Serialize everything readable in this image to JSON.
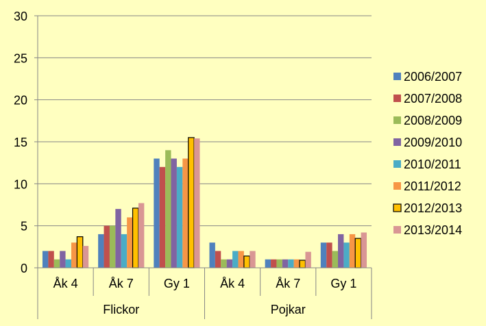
{
  "chart_data": {
    "type": "bar",
    "ylim": [
      0,
      30
    ],
    "yticks": [
      0,
      5,
      10,
      15,
      20,
      25,
      30
    ],
    "grid": true,
    "legend_position": "right",
    "groups": [
      {
        "label": "Flickor",
        "categories": [
          "Åk 4",
          "Åk 7",
          "Gy 1"
        ]
      },
      {
        "label": "Pojkar",
        "categories": [
          "Åk 4",
          "Åk 7",
          "Gy 1"
        ]
      }
    ],
    "series": [
      {
        "name": "2006/2007",
        "color": "#4F81BD",
        "values": [
          2,
          4,
          13,
          3,
          1,
          3
        ]
      },
      {
        "name": "2007/2008",
        "color": "#C0504D",
        "values": [
          2,
          5,
          12,
          2,
          1,
          3
        ]
      },
      {
        "name": "2008/2009",
        "color": "#9BBB59",
        "values": [
          1,
          5,
          14,
          1,
          1,
          2
        ]
      },
      {
        "name": "2009/2010",
        "color": "#8064A2",
        "values": [
          2,
          7,
          13,
          1,
          1,
          4
        ]
      },
      {
        "name": "2010/2011",
        "color": "#4BACC6",
        "values": [
          1,
          4,
          12,
          2,
          1,
          3
        ]
      },
      {
        "name": "2011/2012",
        "color": "#F79646",
        "values": [
          3,
          6,
          13,
          2,
          1,
          4
        ]
      },
      {
        "name": "2012/2013",
        "color": "#FFC000",
        "outlined": true,
        "values": [
          3.7,
          7.1,
          15.5,
          1.4,
          0.9,
          3.5
        ]
      },
      {
        "name": "2013/2014",
        "color": "#D99694",
        "values": [
          2.6,
          7.7,
          15.4,
          2.0,
          1.9,
          4.2
        ]
      }
    ]
  }
}
